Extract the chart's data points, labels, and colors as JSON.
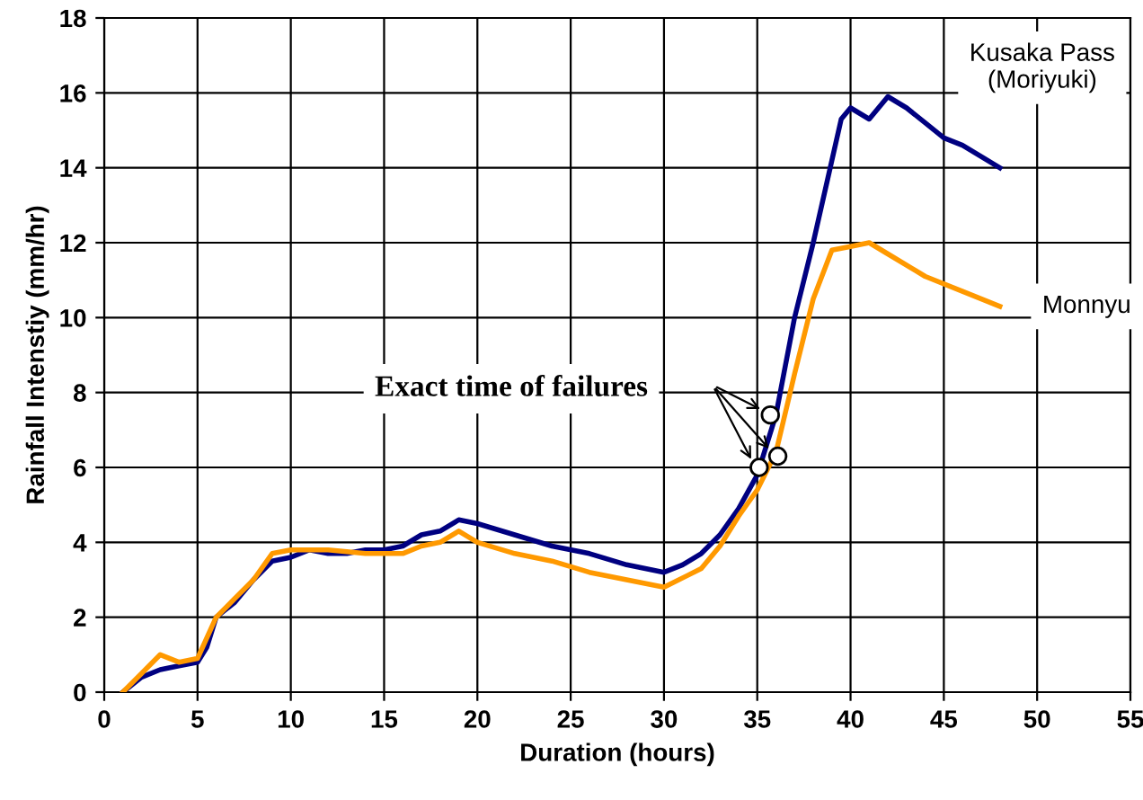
{
  "chart_data": {
    "type": "line",
    "xlabel": "Duration (hours)",
    "ylabel": "Rainfall Intenstiy (mm/hr)",
    "xlim": [
      0,
      55
    ],
    "ylim": [
      0,
      18
    ],
    "xticks": [
      0,
      5,
      10,
      15,
      20,
      25,
      30,
      35,
      40,
      45,
      50,
      55
    ],
    "yticks": [
      0,
      2,
      4,
      6,
      8,
      10,
      12,
      14,
      16,
      18
    ],
    "grid": true,
    "legend": false,
    "marker": "none",
    "line_style": "solid",
    "series": [
      {
        "name": "Kusaka Pass\n(Moriyuki)",
        "color": "#000080",
        "x": [
          1,
          2,
          3,
          4,
          5,
          5.5,
          6,
          7,
          8,
          9,
          10,
          11,
          12,
          13,
          14,
          15,
          16,
          17,
          18,
          19,
          20,
          22,
          24,
          26,
          28,
          30,
          31,
          32,
          33,
          34,
          35,
          36,
          37,
          38,
          39,
          39.5,
          40,
          41,
          42,
          43,
          44,
          45,
          46,
          47,
          48
        ],
        "values": [
          0,
          0.4,
          0.6,
          0.7,
          0.8,
          1.2,
          2,
          2.4,
          3,
          3.5,
          3.6,
          3.8,
          3.7,
          3.7,
          3.8,
          3.8,
          3.9,
          4.2,
          4.3,
          4.6,
          4.5,
          4.2,
          3.9,
          3.7,
          3.4,
          3.2,
          3.4,
          3.7,
          4.2,
          4.9,
          5.8,
          7.4,
          10,
          12,
          14.2,
          15.3,
          15.6,
          15.3,
          15.9,
          15.6,
          15.2,
          14.8,
          14.6,
          14.3,
          14
        ]
      },
      {
        "name": "Monnyu",
        "color": "#ff9900",
        "x": [
          1,
          2,
          3,
          4,
          5,
          6,
          7,
          8,
          9,
          10,
          12,
          14,
          16,
          17,
          18,
          19,
          20,
          22,
          24,
          26,
          28,
          30,
          32,
          33,
          34,
          35,
          36,
          37,
          38,
          39,
          40,
          41,
          42,
          44,
          46,
          48
        ],
        "values": [
          0,
          0.5,
          1,
          0.8,
          0.9,
          2,
          2.5,
          3,
          3.7,
          3.8,
          3.8,
          3.7,
          3.7,
          3.9,
          4,
          4.3,
          4,
          3.7,
          3.5,
          3.2,
          3,
          2.8,
          3.3,
          3.9,
          4.7,
          5.4,
          6.4,
          8.5,
          10.5,
          11.8,
          11.9,
          12,
          11.7,
          11.1,
          10.7,
          10.3
        ]
      },
      {
        "type": "scatter",
        "marker": "circle",
        "color": "#000000",
        "x": [
          35.1,
          35.7,
          36.1
        ],
        "values": [
          6,
          7.4,
          6.3
        ]
      }
    ],
    "annotations": [
      "Exact time of failures"
    ]
  }
}
